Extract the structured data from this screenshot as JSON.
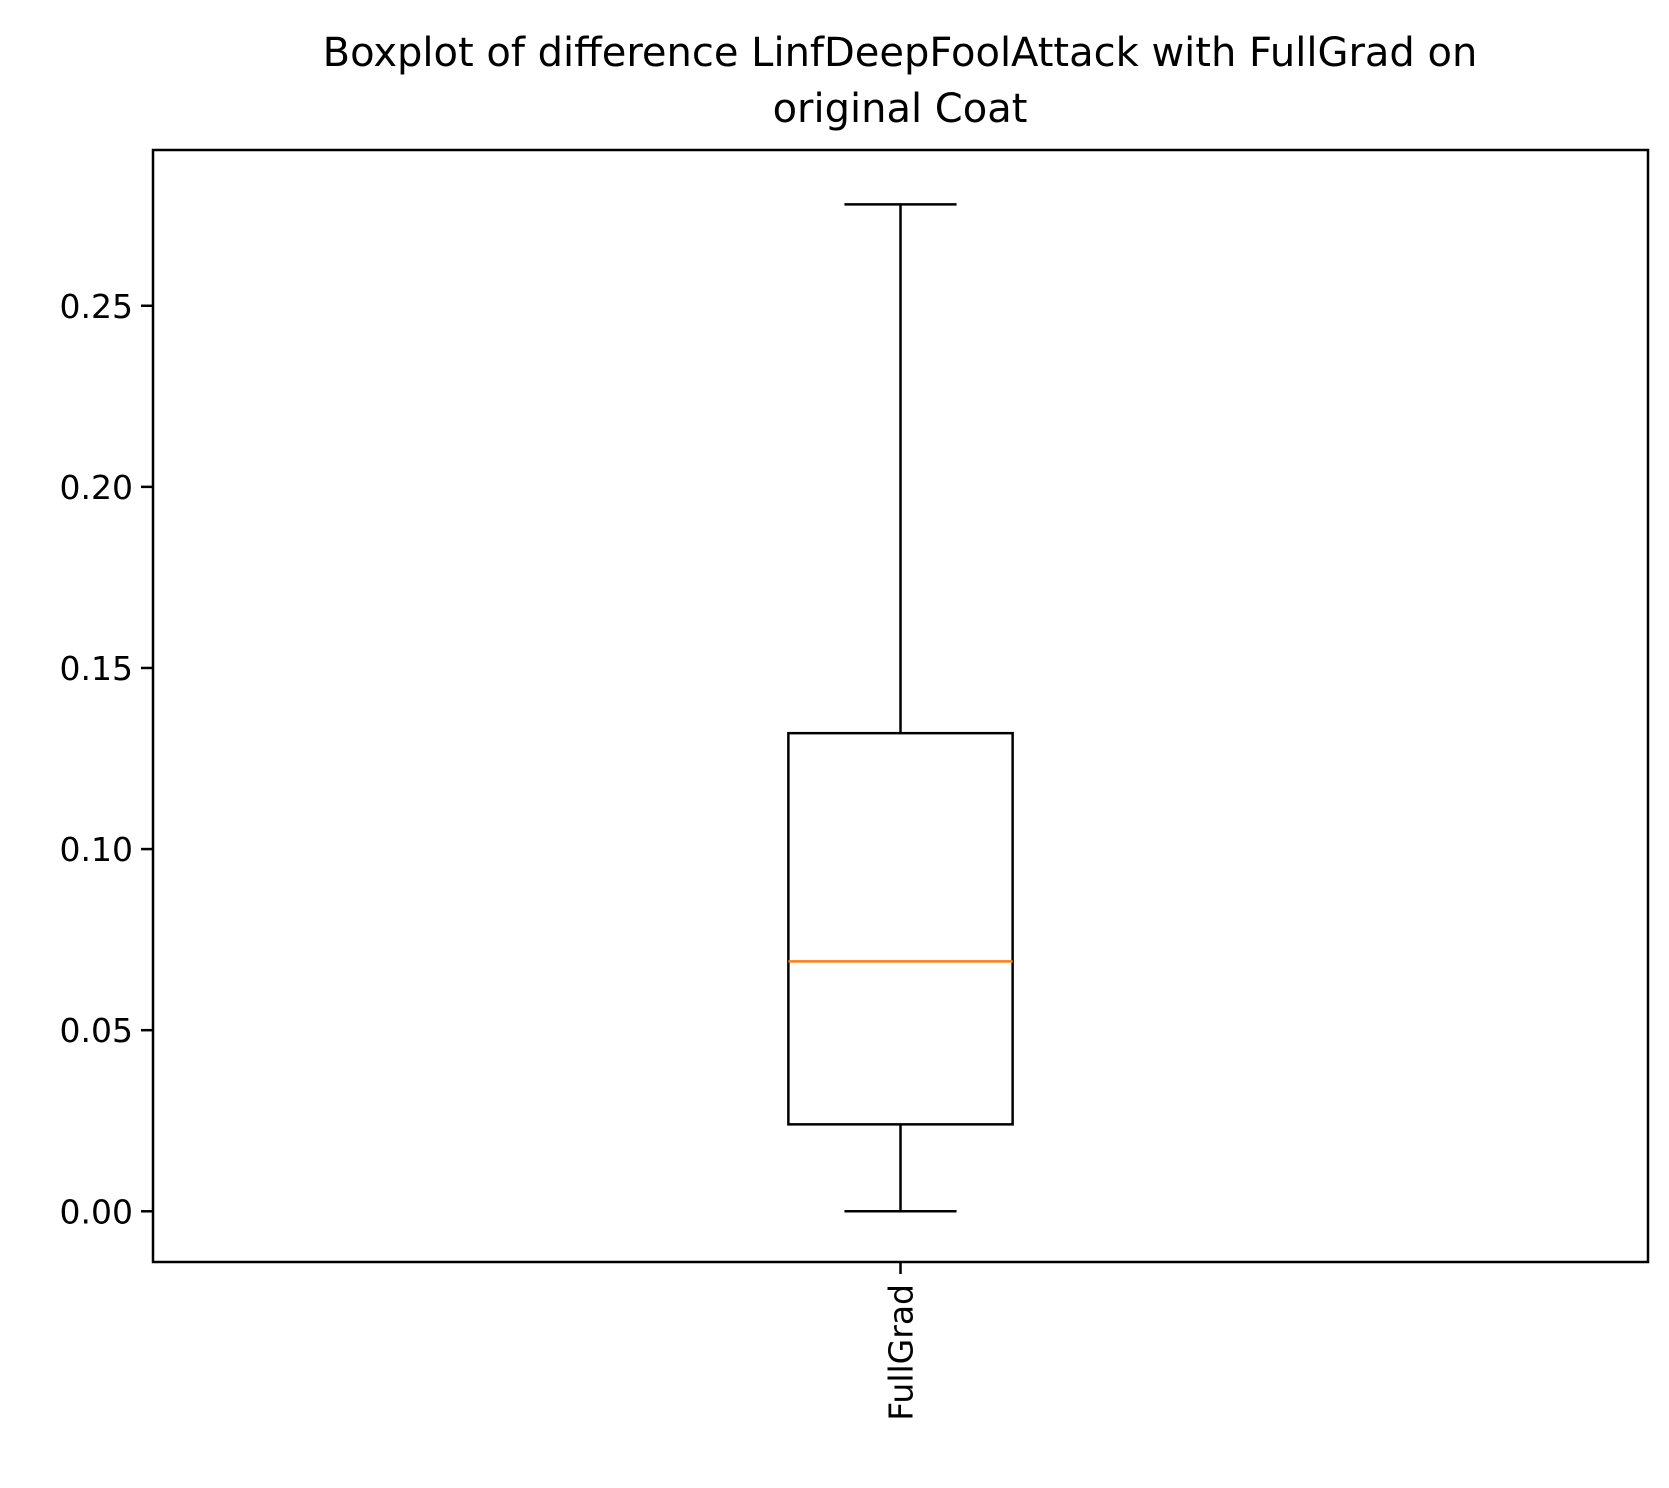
{
  "chart_data": {
    "type": "boxplot",
    "title_lines": [
      "Boxplot of difference LinfDeepFoolAttack with FullGrad on",
      "original Coat"
    ],
    "xlabel": "",
    "ylabel": "",
    "ylim": [
      -0.014,
      0.293
    ],
    "yticks": [
      0.0,
      0.05,
      0.1,
      0.15,
      0.2,
      0.25
    ],
    "ytick_labels": [
      "0.00",
      "0.05",
      "0.10",
      "0.15",
      "0.20",
      "0.25"
    ],
    "categories": [
      "FullGrad"
    ],
    "xtick_rotation": "vertical",
    "grid": false,
    "boxes": [
      {
        "label": "FullGrad",
        "whisker_low": 0.0,
        "q1": 0.024,
        "median": 0.069,
        "q3": 0.132,
        "whisker_high": 0.278
      }
    ],
    "colors": {
      "box": "#000000",
      "median": "#ff7f0e",
      "axes": "#000000",
      "background": "#ffffff"
    }
  }
}
